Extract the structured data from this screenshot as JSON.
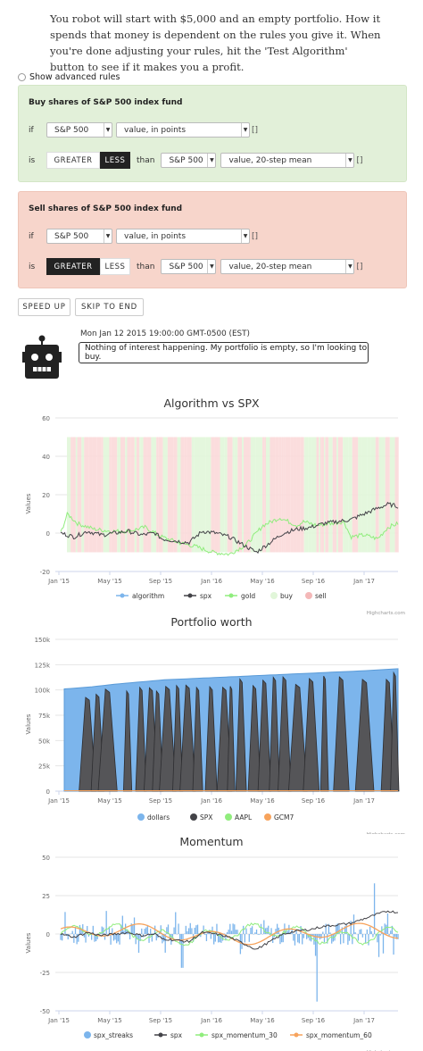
{
  "intro": "You robot will start with $5,000 and an empty portfolio. How it spends that money is dependent on the rules you give it. When you're done adjusting your rules, hit the 'Test Algorithm' button to see if it makes you a profit.",
  "advanced": {
    "label": "Show advanced rules",
    "checked": false
  },
  "buy_rule": {
    "title": "Buy shares of S&P 500 index fund",
    "if_label": "if",
    "is_label": "is",
    "than_label": "than",
    "asset": "S&P 500",
    "measure": "value, in points",
    "greater": "GREATER",
    "less": "LESS",
    "selected": "LESS",
    "compare_asset": "S&P 500",
    "compare_measure": "value, 20-step mean",
    "bracket": "[]"
  },
  "sell_rule": {
    "title": "Sell shares of S&P 500 index fund",
    "if_label": "if",
    "is_label": "is",
    "than_label": "than",
    "asset": "S&P 500",
    "measure": "value, in points",
    "greater": "GREATER",
    "less": "LESS",
    "selected": "GREATER",
    "compare_asset": "S&P 500",
    "compare_measure": "value, 20-step mean",
    "bracket": "[]"
  },
  "buttons": {
    "speed_up": "SPEED UP",
    "skip": "SKIP TO END"
  },
  "status": {
    "timestamp": "Mon Jan 12 2015 19:00:00 GMT-0500 (EST)",
    "message": "Nothing of interest happening. My portfolio is empty, so I'm looking to buy."
  },
  "credits": "Highcharts.com",
  "colors": {
    "algorithm": "#7cb5ec",
    "spx": "#434348",
    "gold": "#90ed7d",
    "buy": "#e1f6d9",
    "sell": "#fbd9d9",
    "aapl": "#90ed7d",
    "gcm7": "#f7a35c"
  },
  "chart_data": [
    {
      "type": "line",
      "title": "Algorithm vs SPX",
      "ylabel": "Values",
      "ylim": [
        -20,
        60
      ],
      "yticks": [
        -20,
        0,
        20,
        40,
        60
      ],
      "xticks": [
        "Jan '15",
        "May '15",
        "Sep '15",
        "Jan '16",
        "May '16",
        "Sep '16",
        "Jan '17"
      ],
      "series": [
        {
          "name": "algorithm",
          "values": []
        },
        {
          "name": "spx",
          "x": [
            0,
            0.04,
            0.08,
            0.12,
            0.16,
            0.2,
            0.24,
            0.28,
            0.3,
            0.34,
            0.38,
            0.4,
            0.42,
            0.46,
            0.5,
            0.54,
            0.58,
            0.62,
            0.66,
            0.7,
            0.74,
            0.78,
            0.82,
            0.86,
            0.9,
            0.94,
            0.97,
            1.0
          ],
          "values": [
            0,
            -2,
            1,
            -1,
            0,
            1,
            -1,
            0,
            -3,
            -4,
            -5,
            -2,
            1,
            0,
            -2,
            -6,
            -10,
            -5,
            0,
            2,
            3,
            5,
            6,
            7,
            10,
            13,
            15,
            14
          ]
        },
        {
          "name": "gold",
          "x": [
            0,
            0.02,
            0.05,
            0.1,
            0.15,
            0.2,
            0.25,
            0.3,
            0.35,
            0.4,
            0.45,
            0.5,
            0.55,
            0.6,
            0.65,
            0.7,
            0.72,
            0.76,
            0.8,
            0.84,
            0.86,
            0.9,
            0.94,
            0.97,
            1.0
          ],
          "values": [
            0,
            10,
            5,
            2,
            1,
            1,
            3,
            -2,
            -5,
            -7,
            -10,
            -11,
            -6,
            4,
            8,
            4,
            6,
            4,
            5,
            6,
            -2,
            -1,
            -3,
            3,
            5
          ]
        },
        {
          "name": "buy",
          "values": []
        },
        {
          "name": "sell",
          "values": []
        }
      ]
    },
    {
      "type": "area",
      "title": "Portfolio worth",
      "ylabel": "Values",
      "ylim": [
        0,
        150000
      ],
      "yticks": [
        "0",
        "25k",
        "50k",
        "75k",
        "100k",
        "125k",
        "150k"
      ],
      "xticks": [
        "Jan '15",
        "May '15",
        "Sep '15",
        "Jan '16",
        "May '16",
        "Sep '16",
        "Jan '17"
      ],
      "series": [
        {
          "name": "dollars",
          "x": [
            0,
            0.08,
            0.16,
            0.3,
            0.5,
            0.7,
            0.9,
            1.0
          ],
          "values": [
            101000,
            103000,
            106000,
            110000,
            113000,
            116000,
            119000,
            121000
          ]
        },
        {
          "name": "SPX",
          "values": []
        },
        {
          "name": "AAPL",
          "values": []
        },
        {
          "name": "GCM7",
          "values": []
        }
      ]
    },
    {
      "type": "line",
      "title": "Momentum",
      "ylabel": "Values",
      "ylim": [
        -50,
        50
      ],
      "yticks": [
        -50,
        -25,
        0,
        25,
        50
      ],
      "xticks": [
        "Jan '15",
        "May '15",
        "Sep '15",
        "Jan '16",
        "May '16",
        "Sep '16",
        "Jan '17"
      ],
      "series": [
        {
          "name": "spx_streaks",
          "values": []
        },
        {
          "name": "spx",
          "x": [
            0,
            0.04,
            0.08,
            0.12,
            0.16,
            0.2,
            0.24,
            0.28,
            0.3,
            0.34,
            0.38,
            0.4,
            0.42,
            0.46,
            0.5,
            0.54,
            0.58,
            0.62,
            0.66,
            0.7,
            0.74,
            0.78,
            0.82,
            0.86,
            0.9,
            0.94,
            0.97,
            1.0
          ],
          "values": [
            0,
            -2,
            1,
            -1,
            0,
            1,
            -1,
            0,
            -3,
            -4,
            -5,
            -2,
            1,
            0,
            -2,
            -6,
            -10,
            -5,
            0,
            2,
            3,
            5,
            6,
            7,
            10,
            13,
            15,
            14
          ]
        },
        {
          "name": "spx_momentum_30",
          "values": []
        },
        {
          "name": "spx_momentum_60",
          "values": []
        }
      ]
    }
  ]
}
